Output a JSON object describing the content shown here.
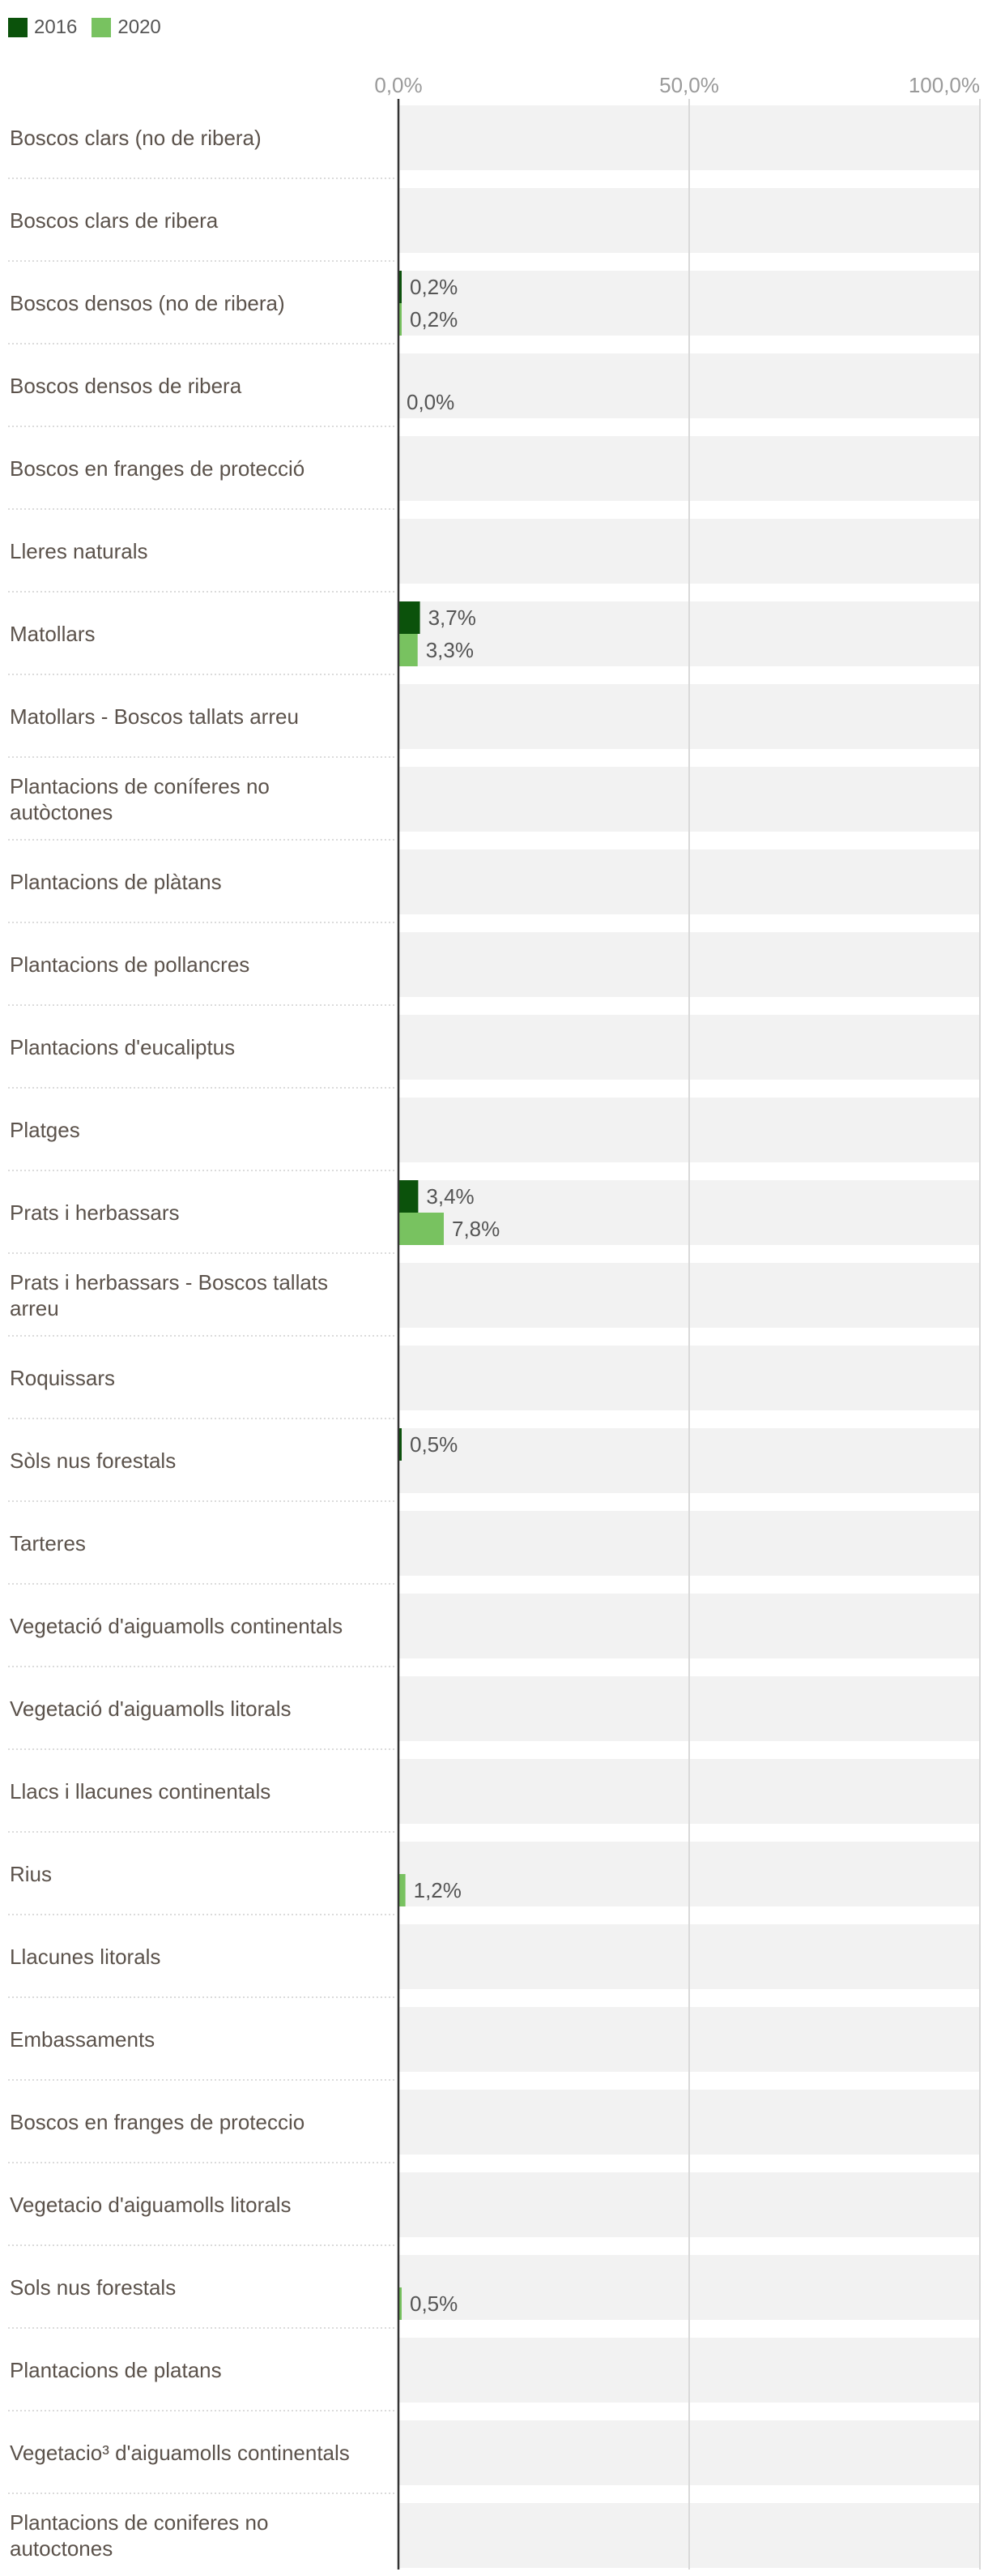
{
  "legend": [
    {
      "name": "2016",
      "color": "#0b520b"
    },
    {
      "name": "2020",
      "color": "#78c260"
    }
  ],
  "chart_data": {
    "type": "bar",
    "orientation": "horizontal",
    "title": "",
    "xlabel": "",
    "ylabel": "",
    "xlim": [
      0,
      100
    ],
    "x_ticks": [
      {
        "value": 0,
        "label": "0,0%"
      },
      {
        "value": 50,
        "label": "50,0%"
      },
      {
        "value": 100,
        "label": "100,0%"
      }
    ],
    "grid": true,
    "legend_position": "top-left",
    "categories": [
      {
        "label": [
          "Boscos clars (no de ribera)"
        ]
      },
      {
        "label": [
          "Boscos clars de ribera"
        ]
      },
      {
        "label": [
          "Boscos densos (no de ribera)"
        ]
      },
      {
        "label": [
          "Boscos densos de ribera"
        ]
      },
      {
        "label": [
          "Boscos en franges de protecció"
        ]
      },
      {
        "label": [
          "Lleres naturals"
        ]
      },
      {
        "label": [
          "Matollars"
        ]
      },
      {
        "label": [
          "Matollars - Boscos tallats arreu"
        ]
      },
      {
        "label": [
          "Plantacions de coníferes no",
          "autòctones"
        ]
      },
      {
        "label": [
          "Plantacions de plàtans"
        ]
      },
      {
        "label": [
          "Plantacions de pollancres"
        ]
      },
      {
        "label": [
          "Plantacions d'eucaliptus"
        ]
      },
      {
        "label": [
          "Platges"
        ]
      },
      {
        "label": [
          "Prats i herbassars"
        ]
      },
      {
        "label": [
          "Prats i herbassars - Boscos tallats",
          "arreu"
        ]
      },
      {
        "label": [
          "Roquissars"
        ]
      },
      {
        "label": [
          "Sòls nus forestals"
        ]
      },
      {
        "label": [
          "Tarteres"
        ]
      },
      {
        "label": [
          "Vegetació d'aiguamolls continentals"
        ]
      },
      {
        "label": [
          "Vegetació d'aiguamolls litorals"
        ]
      },
      {
        "label": [
          "Llacs i llacunes continentals"
        ]
      },
      {
        "label": [
          "Rius"
        ]
      },
      {
        "label": [
          "Llacunes litorals"
        ]
      },
      {
        "label": [
          "Embassaments"
        ]
      },
      {
        "label": [
          "Boscos en franges de proteccio"
        ]
      },
      {
        "label": [
          "Vegetacio d'aiguamolls litorals"
        ]
      },
      {
        "label": [
          "Sols nus forestals"
        ]
      },
      {
        "label": [
          "Plantacions de platans"
        ]
      },
      {
        "label": [
          "Vegetacio³ d'aiguamolls continentals"
        ]
      },
      {
        "label": [
          "Plantacions de coniferes no",
          "autoctones"
        ]
      }
    ],
    "series": [
      {
        "name": "2016",
        "color": "#0b520b",
        "values": [
          null,
          null,
          0.2,
          null,
          null,
          null,
          3.7,
          null,
          null,
          null,
          null,
          null,
          null,
          3.4,
          null,
          null,
          0.5,
          null,
          null,
          null,
          null,
          null,
          null,
          null,
          null,
          null,
          null,
          null,
          null,
          null
        ],
        "value_labels": [
          null,
          null,
          "0,2%",
          null,
          null,
          null,
          "3,7%",
          null,
          null,
          null,
          null,
          null,
          null,
          "3,4%",
          null,
          null,
          "0,5%",
          null,
          null,
          null,
          null,
          null,
          null,
          null,
          null,
          null,
          null,
          null,
          null,
          null
        ]
      },
      {
        "name": "2020",
        "color": "#78c260",
        "values": [
          null,
          null,
          0.2,
          0.0,
          null,
          null,
          3.3,
          null,
          null,
          null,
          null,
          null,
          null,
          7.8,
          null,
          null,
          null,
          null,
          null,
          null,
          null,
          1.2,
          null,
          null,
          null,
          null,
          0.5,
          null,
          null,
          null
        ],
        "value_labels": [
          null,
          null,
          "0,2%",
          "0,0%",
          null,
          null,
          "3,3%",
          null,
          null,
          null,
          null,
          null,
          null,
          "7,8%",
          null,
          null,
          null,
          null,
          null,
          null,
          null,
          "1,2%",
          null,
          null,
          null,
          null,
          "0,5%",
          null,
          null,
          null
        ]
      }
    ]
  }
}
